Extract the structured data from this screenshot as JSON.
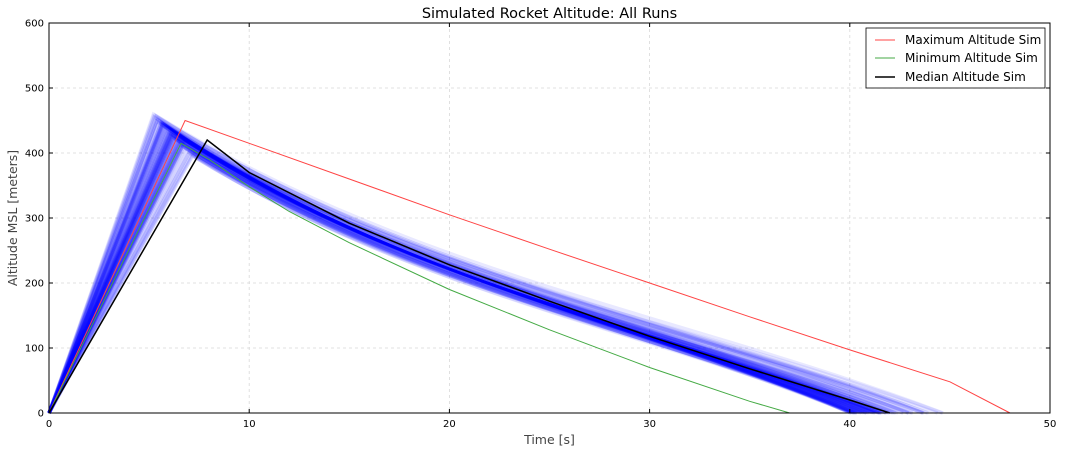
{
  "chart_data": {
    "type": "line",
    "title": "Simulated Rocket Altitude: All Runs",
    "xlabel": "Time [s]",
    "ylabel": "Altitude MSL [meters]",
    "xlim": [
      0,
      50
    ],
    "ylim": [
      0,
      600
    ],
    "xticks": [
      "0",
      "10",
      "20",
      "30",
      "40",
      "50"
    ],
    "yticks": [
      "0",
      "100",
      "200",
      "300",
      "400",
      "500",
      "600"
    ],
    "grid": true,
    "legend_position": "top-right",
    "series": [
      {
        "name": "Maximum Altitude Sim",
        "color": "#ff4444",
        "x": [
          0,
          6.8,
          10,
          15,
          20,
          25,
          30,
          35,
          40,
          45,
          48
        ],
        "y": [
          0,
          450,
          415,
          360,
          305,
          252,
          200,
          148,
          97,
          48,
          0
        ]
      },
      {
        "name": "Minimum Altitude Sim",
        "color": "#44aa44",
        "x": [
          0,
          6.6,
          8,
          10,
          12,
          15,
          20,
          25,
          30,
          35,
          37
        ],
        "y": [
          0,
          415,
          390,
          348,
          310,
          262,
          190,
          128,
          70,
          18,
          0
        ]
      },
      {
        "name": "Median Altitude Sim",
        "color": "#000000",
        "x": [
          0,
          7.9,
          10,
          15,
          20,
          25,
          30,
          35,
          40,
          42
        ],
        "y": [
          0,
          420,
          370,
          292,
          228,
          172,
          118,
          68,
          20,
          0
        ]
      }
    ],
    "ensemble": {
      "color": "#0000ff",
      "description_runs": 60,
      "apex_time_range": [
        5.2,
        7.2
      ],
      "apex_altitude_range": [
        395,
        458
      ],
      "landing_time_range": [
        38,
        45
      ]
    }
  }
}
